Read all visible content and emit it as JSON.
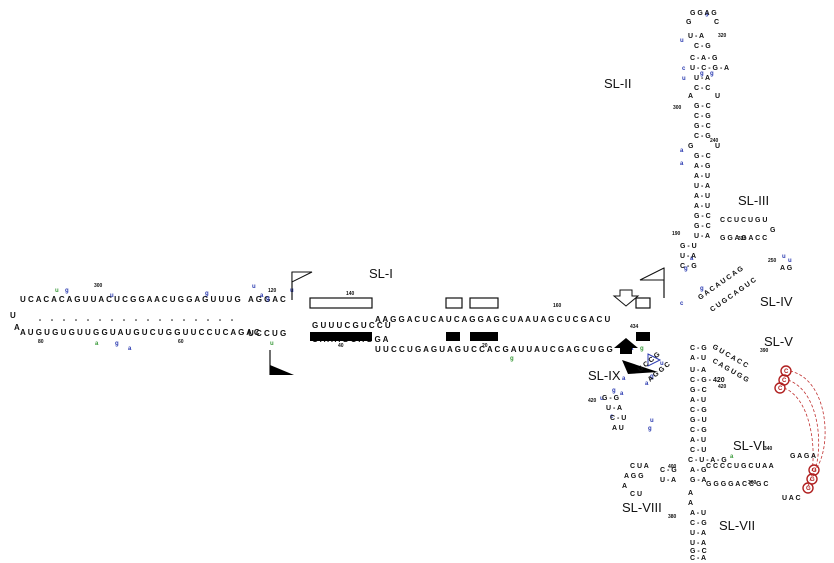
{
  "labels": {
    "sl1": "SL-I",
    "sl2": "SL-II",
    "sl3": "SL-III",
    "sl4": "SL-IV",
    "sl5": "SL-V",
    "sl6": "SL-VI",
    "sl7": "SL-VII",
    "sl8": "SL-VIII",
    "sl9": "SL-IX"
  },
  "numbers": {
    "n300": "300",
    "n80": "80",
    "n60": "60",
    "n120": "120",
    "n140": "140",
    "n40": "40",
    "n20": "20",
    "n160": "160",
    "n320": "320",
    "n300b": "300",
    "n240": "240",
    "n320b": "320",
    "n190": "190",
    "n250": "250",
    "n390": "390",
    "n420": "420",
    "n420b": "420",
    "n400": "400",
    "n340": "340",
    "n360": "360",
    "n380": "380",
    "n434": "434"
  },
  "stem_sl1_top": "U C A C A C A G U U A C U C G G A A C U   G G A G U U U G",
  "stem_sl1_bottom": "A U G U G U G U U G G U A U G U C U G G U U   C C U C A G A C",
  "stem_sl1_mid_top": "G U U U C G U C C U",
  "stem_sl1_mid_bottom": "C A A A G C A G G A",
  "stem_right_top": "A A  G G A C U C A U C A G G   A G   C U A A U A G   C U   C G A C U",
  "stem_right_bottom": "U U  C C U G A G U A G U C C   A C   G A U U A U C   G A   G C U G G",
  "sl2_seq": [
    "G G A G",
    "G   C",
    "U - A",
    "C - G",
    "C - A - G",
    "U - C - G - A",
    "U - A",
    "C - C",
    "A",
    "U",
    "G - C",
    "C - G",
    "G - C",
    "C - G",
    "G",
    "U",
    "G - C",
    "A - G",
    "A - U",
    "U - A",
    "A - U",
    "A - U",
    "G - C",
    "G - C",
    "U - A"
  ],
  "sl3_seq": [
    "C C U C U G U",
    "G G A G A C C"
  ],
  "sl4_seq": [
    "G A C A U C A G",
    "C U G C A G U C"
  ],
  "sl5_seq": [
    "C",
    "C",
    "C"
  ],
  "sl6_seq": [
    "C C C C U G C U A A",
    "G G G G A C C G C"
  ],
  "sl7_seq": [
    "A - U",
    "C - G",
    "U - A",
    "U - A",
    "G - C",
    "G - C",
    "G - C",
    "C - A"
  ],
  "sl8_seq": [
    "C U A",
    "A G G",
    "A",
    "C U"
  ],
  "sl9_seq": [
    "U - A",
    "C - G",
    "C - G",
    "G - C",
    "A",
    "G - G",
    "U - A",
    "C - U",
    "A - G"
  ],
  "spine_seq": [
    "U - A",
    "C - G - 420",
    "G - C",
    "A - U",
    "C - G",
    "G - U",
    "C - G",
    "A - U",
    "C - U",
    "A - G",
    "U - A",
    "A - G",
    "A - U"
  ],
  "colors": {
    "base": "#111111",
    "mod_blue": "#2a3ab0",
    "mod_green": "#3a9a3a",
    "circle": "#b02020",
    "bar": "#000000"
  }
}
